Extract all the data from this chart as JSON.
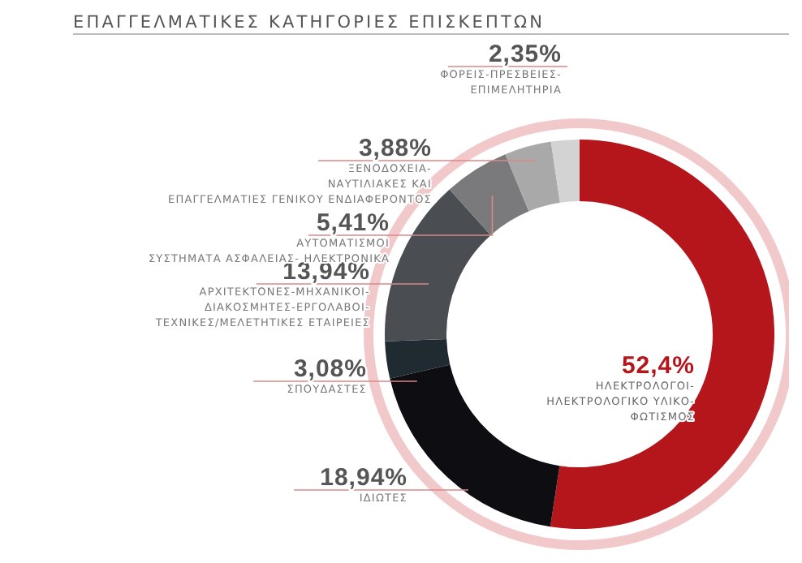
{
  "chart_data": {
    "type": "donut",
    "title": "ΕΠΑΓΓΕΛΜΑΤΙΚΕΣ ΚΑΤΗΓΟΡΙΕΣ ΕΠΙΣΚΕΠΤΩΝ",
    "categories": [
      "ΗΛΕΚΤΡΟΛΟΓΟΙ-\nΗΛΕΚΤΡΟΛΟΓΙΚΟ ΥΛΙΚΟ-\nΦΩΤΙΣΜΟΣ",
      "ΙΔΙΩΤΕΣ",
      "ΣΠΟΥΔΑΣΤΕΣ",
      "ΑΡΧΙΤΕΚΤΟΝΕΣ-ΜΗΧΑΝΙΚΟΙ-\nΔΙΑΚΟΣΜΗΤΕΣ-ΕΡΓΟΛΑΒΟΙ-\nΤΕΧΝΙΚΕΣ/ΜΕΛΕΤΗΤΙΚΕΣ ΕΤΑΙΡΕΙΕΣ",
      "ΑΥΤΟΜΑΤΙΣΜΟΙ\nΣΥΣΤΗΜΑΤΑ ΑΣΦΑΛΕΙΑΣ- ΗΛΕΚΤΡΟΝΙΚΑ",
      "ΞΕΝΟΔΟΧΕΙΑ-\nΝΑΥΤΙΛΙΑΚΕΣ ΚΑΙ\nΕΠΑΓΓΕΛΜΑΤΙΕΣ ΓΕΝΙΚΟΥ ΕΝΔΙΑΦΕΡΟΝΤΟΣ",
      "ΦΟΡΕΙΣ-ΠΡΕΣΒΕΙΕΣ-\nΕΠΙΜΕΛΗΤΗΡΙΑ"
    ],
    "values": [
      52.4,
      18.94,
      3.08,
      13.94,
      5.41,
      3.88,
      2.35
    ],
    "value_labels": [
      "52,4%",
      "18,94%",
      "3,08%",
      "13,94%",
      "5,41%",
      "3,88%",
      "2,35%"
    ],
    "colors": [
      "#b5161b",
      "#0d0d12",
      "#1f2b30",
      "#4a4d52",
      "#7a7a7c",
      "#a9a9a9",
      "#d3d3d3"
    ]
  }
}
